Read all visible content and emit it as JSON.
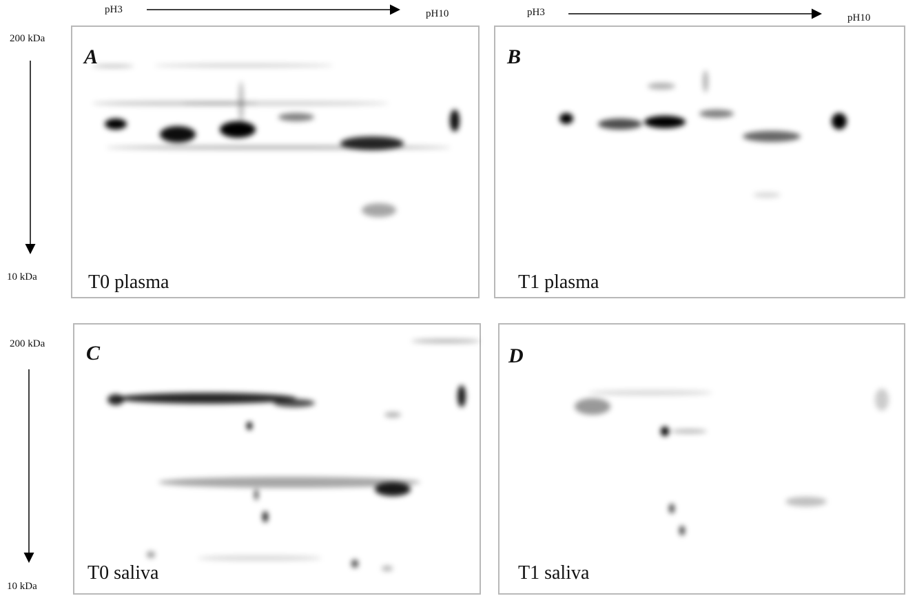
{
  "top_axis": [
    {
      "start": "pH3",
      "end": "pH10"
    },
    {
      "start": "pH3",
      "end": "pH10"
    }
  ],
  "left_axis": [
    {
      "top": "200 kDa",
      "bottom": "10 kDa"
    },
    {
      "top": "200 kDa",
      "bottom": "10 kDa"
    }
  ],
  "panels": [
    {
      "letter": "A",
      "caption": "T0 plasma"
    },
    {
      "letter": "B",
      "caption": "T1 plasma"
    },
    {
      "letter": "C",
      "caption": "T0 saliva"
    },
    {
      "letter": "D",
      "caption": "T1 saliva"
    }
  ]
}
